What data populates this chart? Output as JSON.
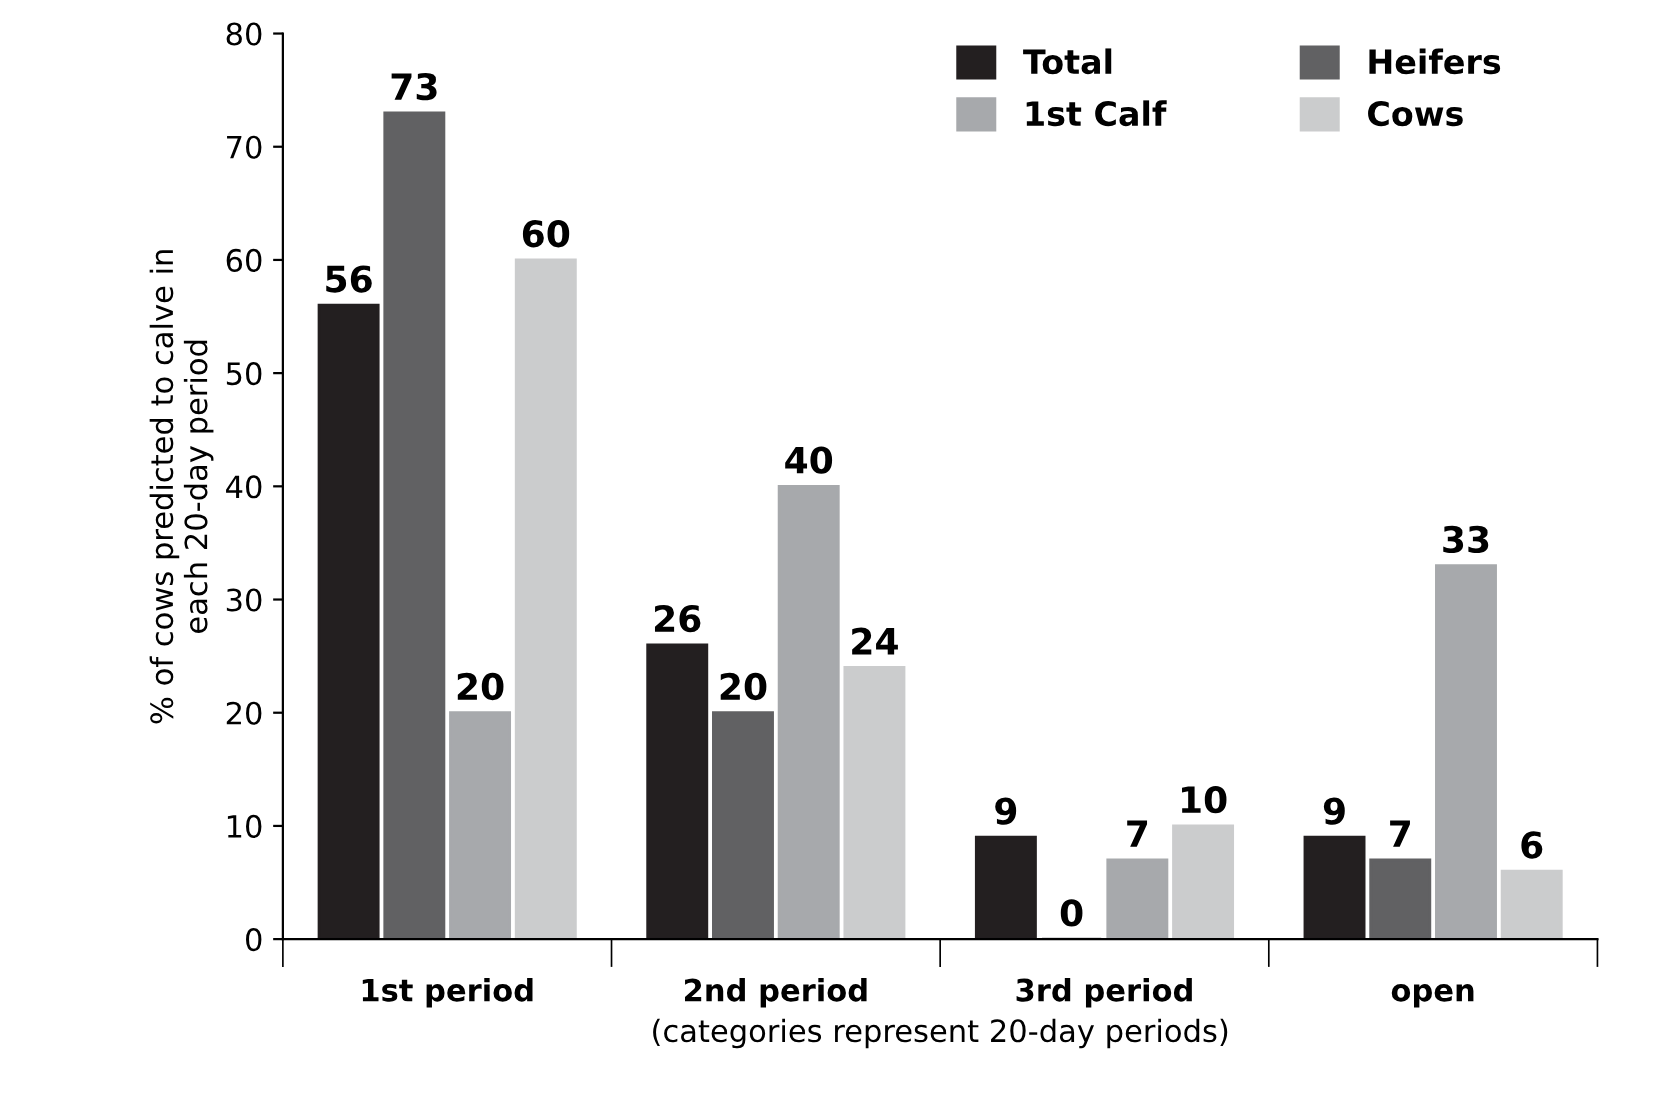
{
  "chart_data": {
    "type": "bar",
    "xlabel": "(categories represent 20-day periods)",
    "ylabel": "% of cows predicted to calve in\neach 20-day period",
    "categories": [
      "1st period",
      "2nd period",
      "3rd period",
      "open"
    ],
    "series": [
      {
        "name": "Total",
        "color": "#231f20",
        "values": [
          56,
          26,
          9,
          9
        ]
      },
      {
        "name": "Heifers",
        "color": "#616163",
        "values": [
          73,
          20,
          0,
          7
        ]
      },
      {
        "name": "1st Calf",
        "color": "#a7a9ac",
        "values": [
          20,
          40,
          7,
          33
        ]
      },
      {
        "name": "Cows",
        "color": "#cbcccd",
        "values": [
          60,
          24,
          10,
          6
        ]
      }
    ],
    "ylim": [
      0,
      80
    ],
    "yticks": [
      0,
      10,
      20,
      30,
      40,
      50,
      60,
      70,
      80
    ],
    "grid": false,
    "legend": "top right",
    "data_labels": true
  }
}
